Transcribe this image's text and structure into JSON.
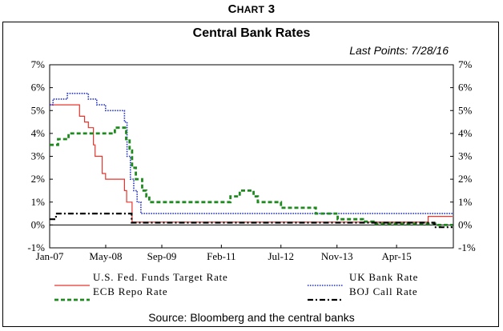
{
  "heading": {
    "big": "C",
    "rest": "HART",
    "num": "3"
  },
  "chart_data": {
    "type": "line",
    "title": "Central Bank Rates",
    "subtitle": "Last  Points:  7/28/16",
    "source": "Source: Bloomberg and the central banks",
    "ylim": [
      -1,
      7
    ],
    "yticks": [
      -1,
      0,
      1,
      2,
      3,
      4,
      5,
      6,
      7
    ],
    "ytick_labels": [
      "-1%",
      "0%",
      "1%",
      "2%",
      "3%",
      "4%",
      "5%",
      "6%",
      "7%"
    ],
    "xlim": [
      2007.0,
      2016.6
    ],
    "xticks": [
      2007.0,
      2008.333,
      2009.667,
      2011.083,
      2012.5,
      2013.833,
      2015.25
    ],
    "xtick_labels": [
      "Jan-07",
      "May-08",
      "Sep-09",
      "Feb-11",
      "Jul-12",
      "Nov-13",
      "Apr-15"
    ],
    "grid": false,
    "legend_position": "bottom",
    "colors": {
      "fed": "#e8342c",
      "uk": "#1f2fc8",
      "ecb": "#1f8a1f",
      "boj": "#000000"
    },
    "series": [
      {
        "name": "U.S. Fed. Funds Target Rate",
        "style": "solid",
        "points": [
          [
            2007.0,
            5.25
          ],
          [
            2007.6,
            5.25
          ],
          [
            2007.71,
            4.75
          ],
          [
            2007.83,
            4.5
          ],
          [
            2007.92,
            4.25
          ],
          [
            2008.04,
            3.5
          ],
          [
            2008.08,
            3.0
          ],
          [
            2008.25,
            2.25
          ],
          [
            2008.33,
            2.0
          ],
          [
            2008.78,
            1.5
          ],
          [
            2008.83,
            1.0
          ],
          [
            2008.96,
            0.125
          ],
          [
            2015.96,
            0.125
          ],
          [
            2016.0,
            0.375
          ],
          [
            2016.58,
            0.375
          ]
        ]
      },
      {
        "name": "UK Bank Rate",
        "style": "dotted",
        "points": [
          [
            2007.0,
            5.25
          ],
          [
            2007.08,
            5.5
          ],
          [
            2007.42,
            5.75
          ],
          [
            2007.92,
            5.5
          ],
          [
            2008.12,
            5.25
          ],
          [
            2008.33,
            5.0
          ],
          [
            2008.78,
            4.5
          ],
          [
            2008.84,
            3.0
          ],
          [
            2008.92,
            2.0
          ],
          [
            2009.0,
            1.5
          ],
          [
            2009.08,
            1.0
          ],
          [
            2009.17,
            0.5
          ],
          [
            2016.58,
            0.5
          ]
        ]
      },
      {
        "name": "ECB Repo Rate",
        "style": "dashed",
        "points": [
          [
            2007.0,
            3.5
          ],
          [
            2007.2,
            3.75
          ],
          [
            2007.45,
            4.0
          ],
          [
            2008.5,
            4.0
          ],
          [
            2008.55,
            4.25
          ],
          [
            2008.77,
            4.25
          ],
          [
            2008.82,
            3.75
          ],
          [
            2008.9,
            3.25
          ],
          [
            2008.96,
            2.5
          ],
          [
            2009.05,
            2.0
          ],
          [
            2009.2,
            1.5
          ],
          [
            2009.3,
            1.25
          ],
          [
            2009.37,
            1.0
          ],
          [
            2011.25,
            1.0
          ],
          [
            2011.3,
            1.25
          ],
          [
            2011.52,
            1.5
          ],
          [
            2011.85,
            1.25
          ],
          [
            2011.95,
            1.0
          ],
          [
            2012.5,
            0.75
          ],
          [
            2013.33,
            0.5
          ],
          [
            2013.85,
            0.25
          ],
          [
            2014.45,
            0.15
          ],
          [
            2014.7,
            0.05
          ],
          [
            2016.17,
            0.0
          ],
          [
            2016.58,
            0.0
          ]
        ]
      },
      {
        "name": "BOJ Call Rate",
        "style": "dashdot",
        "points": [
          [
            2007.0,
            0.25
          ],
          [
            2007.15,
            0.5
          ],
          [
            2008.83,
            0.5
          ],
          [
            2008.95,
            0.1
          ],
          [
            2016.05,
            0.1
          ],
          [
            2016.15,
            -0.1
          ],
          [
            2016.58,
            -0.1
          ]
        ]
      }
    ]
  }
}
